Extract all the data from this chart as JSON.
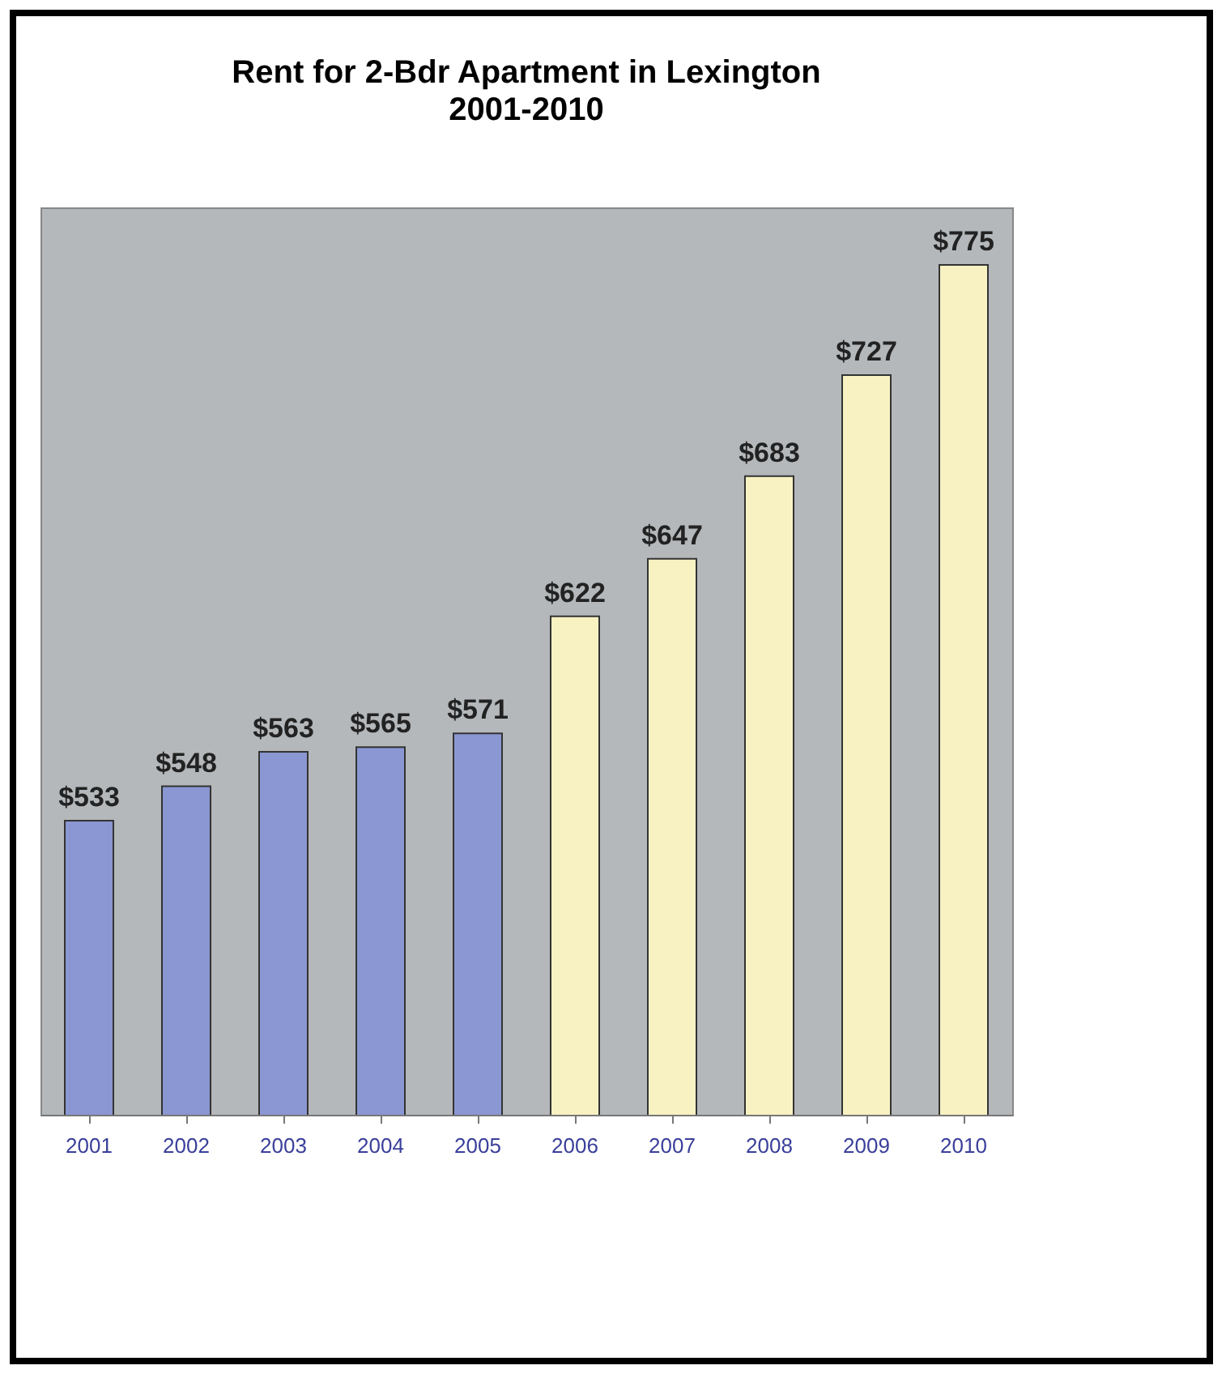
{
  "chart_data": {
    "type": "bar",
    "title": "Rent for 2-Bdr Apartment in Lexington",
    "subtitle": "2001-2010",
    "categories": [
      "2001",
      "2002",
      "2003",
      "2004",
      "2005",
      "2006",
      "2007",
      "2008",
      "2009",
      "2010"
    ],
    "values": [
      533,
      548,
      563,
      565,
      571,
      622,
      647,
      683,
      727,
      775
    ],
    "colors": [
      "#8a97d2",
      "#8a97d2",
      "#8a97d2",
      "#8a97d2",
      "#8a97d2",
      "#f8f2c2",
      "#f8f2c2",
      "#f8f2c2",
      "#f8f2c2",
      "#f8f2c2"
    ],
    "value_labels": [
      "$533",
      "$548",
      "$563",
      "$565",
      "$571",
      "$622",
      "$647",
      "$683",
      "$727",
      "$775"
    ],
    "ylim": [
      405,
      800
    ],
    "grid": false
  }
}
